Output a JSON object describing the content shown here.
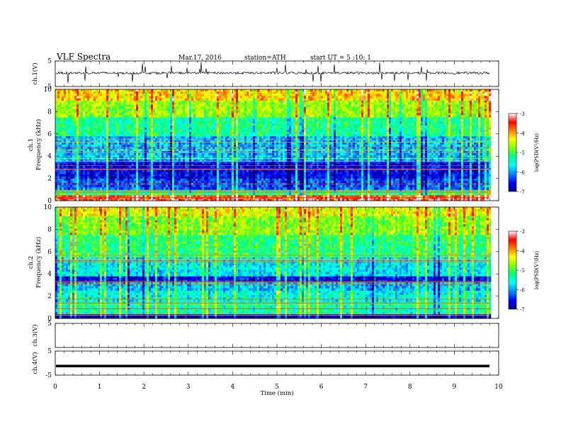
{
  "header": {
    "title": "VLF  Spectra",
    "date": "Mar.17, 2016",
    "station": "station=ATH",
    "start": "start  UT  =   5  :10: 1"
  },
  "chart_data": [
    {
      "type": "line",
      "name": "ch1-waveform",
      "ylabel": "ch.1(V)",
      "ylim": [
        -5,
        5
      ],
      "yticks": [
        "5",
        "-5"
      ],
      "xlim": [
        0,
        10
      ],
      "baseline": 0.3,
      "data_end_min": 9.8
    },
    {
      "type": "heatmap",
      "name": "ch1-spectrogram",
      "ylabel": "ch.1\nFrequency (kHz)",
      "ylim": [
        0,
        10
      ],
      "yticks": [
        "0",
        "2",
        "4",
        "6",
        "8",
        "10"
      ],
      "xlim": [
        0,
        10
      ],
      "data_end_min": 9.8,
      "colorbar": {
        "label": "log(PSD(V²/Hz)",
        "range": [
          -7,
          -3
        ],
        "ticks": [
          "-3",
          "-4",
          "-5",
          "-6",
          "-7"
        ]
      },
      "bands_khz": [
        {
          "from": 0.0,
          "to": 0.15,
          "level": -3.3
        },
        {
          "from": 0.15,
          "to": 0.5,
          "level": -3.6
        },
        {
          "from": 0.5,
          "to": 1.0,
          "level": -5.2
        },
        {
          "from": 1.0,
          "to": 2.0,
          "level": -6.3
        },
        {
          "from": 2.0,
          "to": 3.5,
          "level": -6.6
        },
        {
          "from": 3.5,
          "to": 5.8,
          "level": -5.9
        },
        {
          "from": 5.8,
          "to": 7.5,
          "level": -5.3
        },
        {
          "from": 7.5,
          "to": 9.0,
          "level": -4.7
        },
        {
          "from": 9.0,
          "to": 10.0,
          "level": -4.2
        }
      ]
    },
    {
      "type": "heatmap",
      "name": "ch2-spectrogram",
      "ylabel": "ch.2\nFrequency (kHz)",
      "ylim": [
        0,
        10
      ],
      "yticks": [
        "0",
        "2",
        "4",
        "6",
        "8",
        "10"
      ],
      "xlim": [
        0,
        10
      ],
      "data_end_min": 9.8,
      "colorbar": {
        "label": "log(PSD(V²/Hz)",
        "range": [
          -7,
          -3
        ],
        "ticks": [
          "-3",
          "-4",
          "-5",
          "-6",
          "-7"
        ]
      },
      "bands_khz": [
        {
          "from": 0.0,
          "to": 0.4,
          "level": -6.9
        },
        {
          "from": 0.4,
          "to": 1.5,
          "level": -5.4
        },
        {
          "from": 1.5,
          "to": 2.5,
          "level": -5.6
        },
        {
          "from": 2.5,
          "to": 3.3,
          "level": -5.9
        },
        {
          "from": 3.3,
          "to": 3.8,
          "level": -6.6
        },
        {
          "from": 3.8,
          "to": 5.5,
          "level": -5.7
        },
        {
          "from": 5.5,
          "to": 7.5,
          "level": -5.2
        },
        {
          "from": 7.5,
          "to": 9.2,
          "level": -4.8
        },
        {
          "from": 9.2,
          "to": 10.0,
          "level": -4.4
        }
      ]
    },
    {
      "type": "line",
      "name": "ch3-waveform",
      "ylabel": "ch.3(V)",
      "ylim": [
        -5,
        5
      ],
      "yticks": [
        "5"
      ],
      "xlim": [
        0,
        10
      ],
      "baseline": null
    },
    {
      "type": "line",
      "name": "ch4-waveform",
      "ylabel": "ch.4(V)",
      "ylim": [
        -5,
        5
      ],
      "yticks": [
        "5",
        "-5"
      ],
      "xlim": [
        0,
        10
      ],
      "baseline": -1.2,
      "data_end_min": 9.8
    }
  ],
  "xaxis": {
    "label": "Time  (min)",
    "ticks": [
      "0",
      "1",
      "2",
      "3",
      "4",
      "5",
      "6",
      "7",
      "8",
      "9",
      "10"
    ]
  },
  "colors": {
    "jet": [
      "#000080",
      "#0000ff",
      "#0080ff",
      "#00ffff",
      "#00ff80",
      "#80ff00",
      "#ffff00",
      "#ff8000",
      "#ff0000",
      "#ffffff"
    ]
  }
}
